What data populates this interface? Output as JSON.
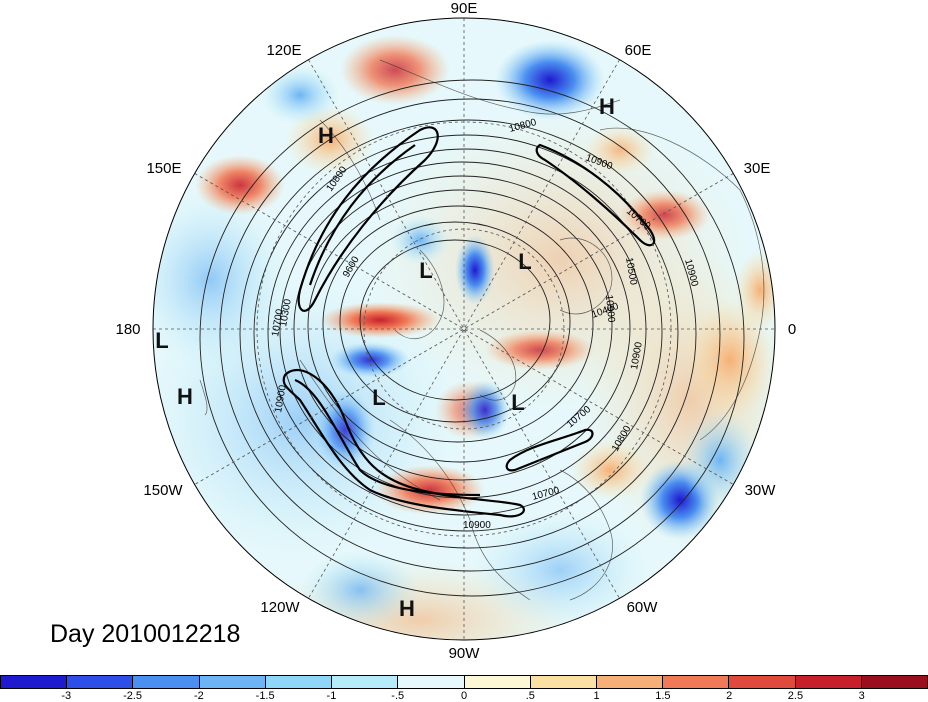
{
  "title": "Day 2010012218",
  "map": {
    "projection": "north-polar-stereographic",
    "longitude_labels": [
      "90E",
      "60E",
      "30E",
      "0",
      "30W",
      "60W",
      "90W",
      "120W",
      "150W",
      "180",
      "150E",
      "120E"
    ],
    "pressure_markers": [
      "H",
      "H",
      "L",
      "L",
      "L",
      "L",
      "L",
      "H",
      "H"
    ],
    "contour_labels": [
      "10800",
      "10900",
      "10700",
      "10900",
      "10800",
      "10500",
      "10900",
      "10400",
      "10300",
      "10700",
      "9600",
      "10900",
      "10700",
      "10800",
      "10900",
      "10700",
      "10900"
    ]
  },
  "colorbar": {
    "tick_labels": [
      "-3",
      "-2.5",
      "-2",
      "-1.5",
      "-1",
      "-.5",
      "0",
      ".5",
      "1",
      "1.5",
      "2",
      "2.5",
      "3"
    ],
    "colors": [
      "#1e1ad0",
      "#2d4ee8",
      "#4b8ff0",
      "#6db4f4",
      "#8fd6f8",
      "#b6ecf9",
      "#e6f8fb",
      "#fcf8d6",
      "#fbe0a3",
      "#f6b077",
      "#f07a58",
      "#e04a3c",
      "#c8202a",
      "#9a0e1e"
    ]
  }
}
